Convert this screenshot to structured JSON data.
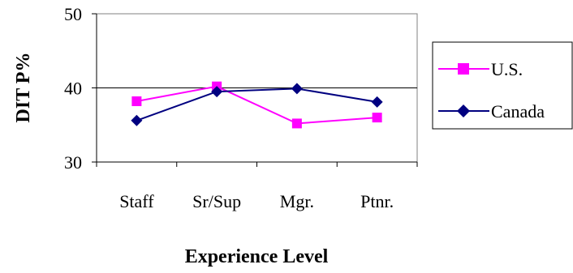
{
  "chart_data": {
    "type": "line",
    "title": "",
    "xlabel": "Experience Level",
    "ylabel": "DIT P%",
    "categories": [
      "Staff",
      "Sr/Sup",
      "Mgr.",
      "Ptnr."
    ],
    "ylim": [
      30,
      50
    ],
    "yticks": [
      30,
      40,
      50
    ],
    "grid": "horizontal line at 40 only",
    "legend_position": "right",
    "series": [
      {
        "name": "U.S.",
        "values": [
          38.2,
          40.2,
          35.2,
          36.0
        ],
        "color": "#ff00ff",
        "marker": "square"
      },
      {
        "name": "Canada",
        "values": [
          35.6,
          39.5,
          39.9,
          38.1
        ],
        "color": "#000080",
        "marker": "diamond"
      }
    ]
  }
}
